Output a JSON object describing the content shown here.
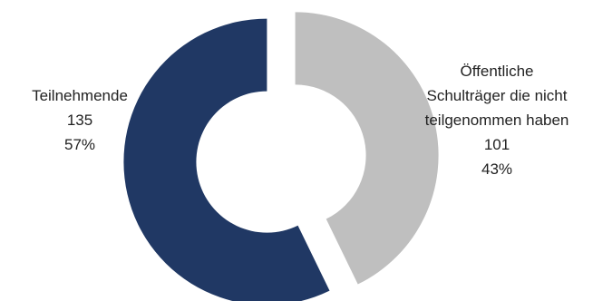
{
  "chart_data": {
    "type": "pie",
    "variant": "donut",
    "slices": [
      {
        "label": "Teilnehmende",
        "value": 135,
        "percent": "57%",
        "color": "#203864"
      },
      {
        "label": "Öffentliche Schulträger die nicht teilgenommen haben",
        "value": 101,
        "percent": "43%",
        "color": "#bfbfbf"
      }
    ],
    "exploded": true,
    "legend": "none"
  },
  "labels": {
    "teilnehmende": {
      "line1": "Teilnehmende",
      "value": "135",
      "percent": "57%"
    },
    "nicht_teilgenommen": {
      "line1": "Öffentliche",
      "line2": "Schulträger die nicht",
      "line3": "teilgenommen haben",
      "value": "101",
      "percent": "43%"
    }
  }
}
